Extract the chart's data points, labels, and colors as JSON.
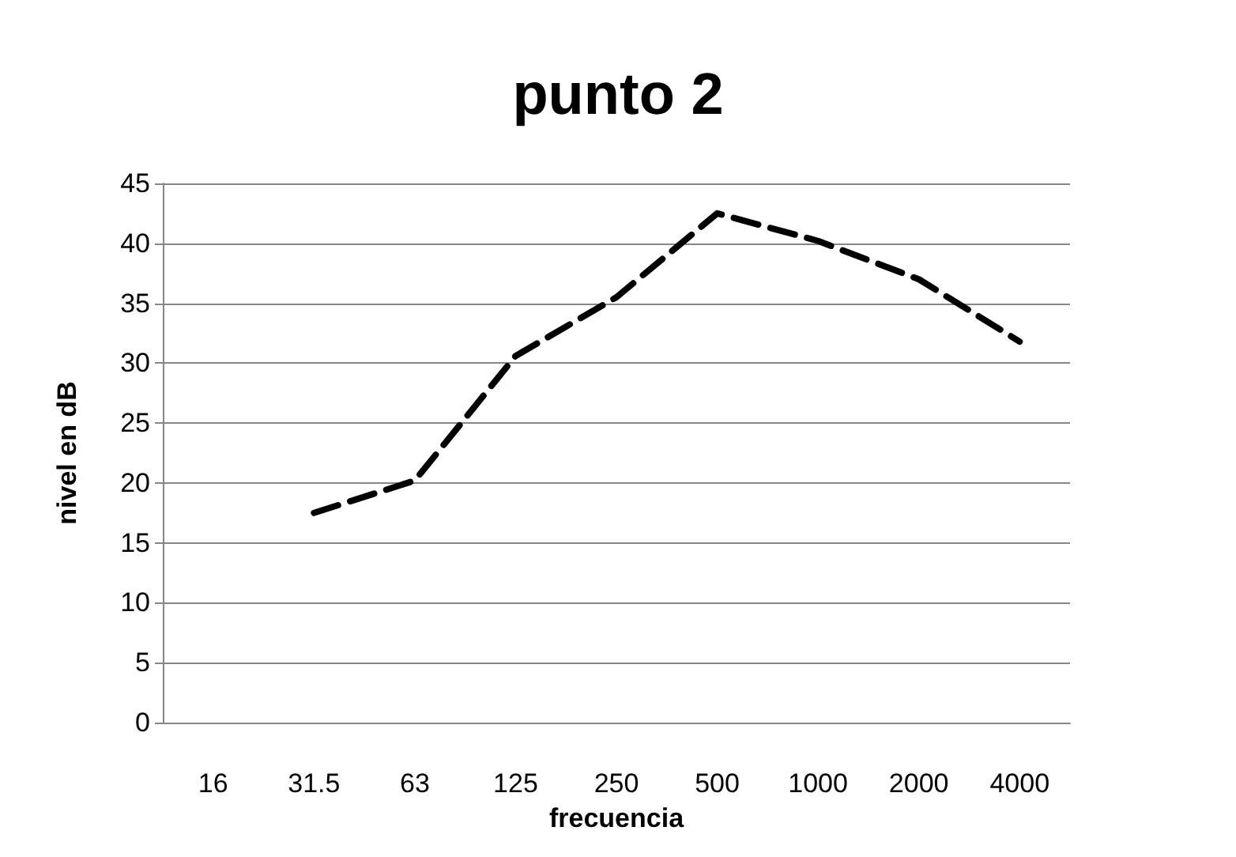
{
  "chart_data": {
    "type": "line",
    "title": "punto 2",
    "xlabel": "frecuencia",
    "ylabel": "nivel en dB",
    "categories": [
      "16",
      "31.5",
      "63",
      "125",
      "250",
      "500",
      "1000",
      "2000",
      "4000"
    ],
    "series": [
      {
        "color": "#000000",
        "values": [
          null,
          17.5,
          20.2,
          30.6,
          35.5,
          42.5,
          40.2,
          37,
          31.8
        ]
      }
    ],
    "ylim": [
      0,
      45
    ],
    "yticks": [
      0,
      5,
      10,
      15,
      20,
      25,
      30,
      35,
      40,
      45
    ],
    "grid": "y",
    "marker": "none",
    "line_style": "dashed"
  }
}
